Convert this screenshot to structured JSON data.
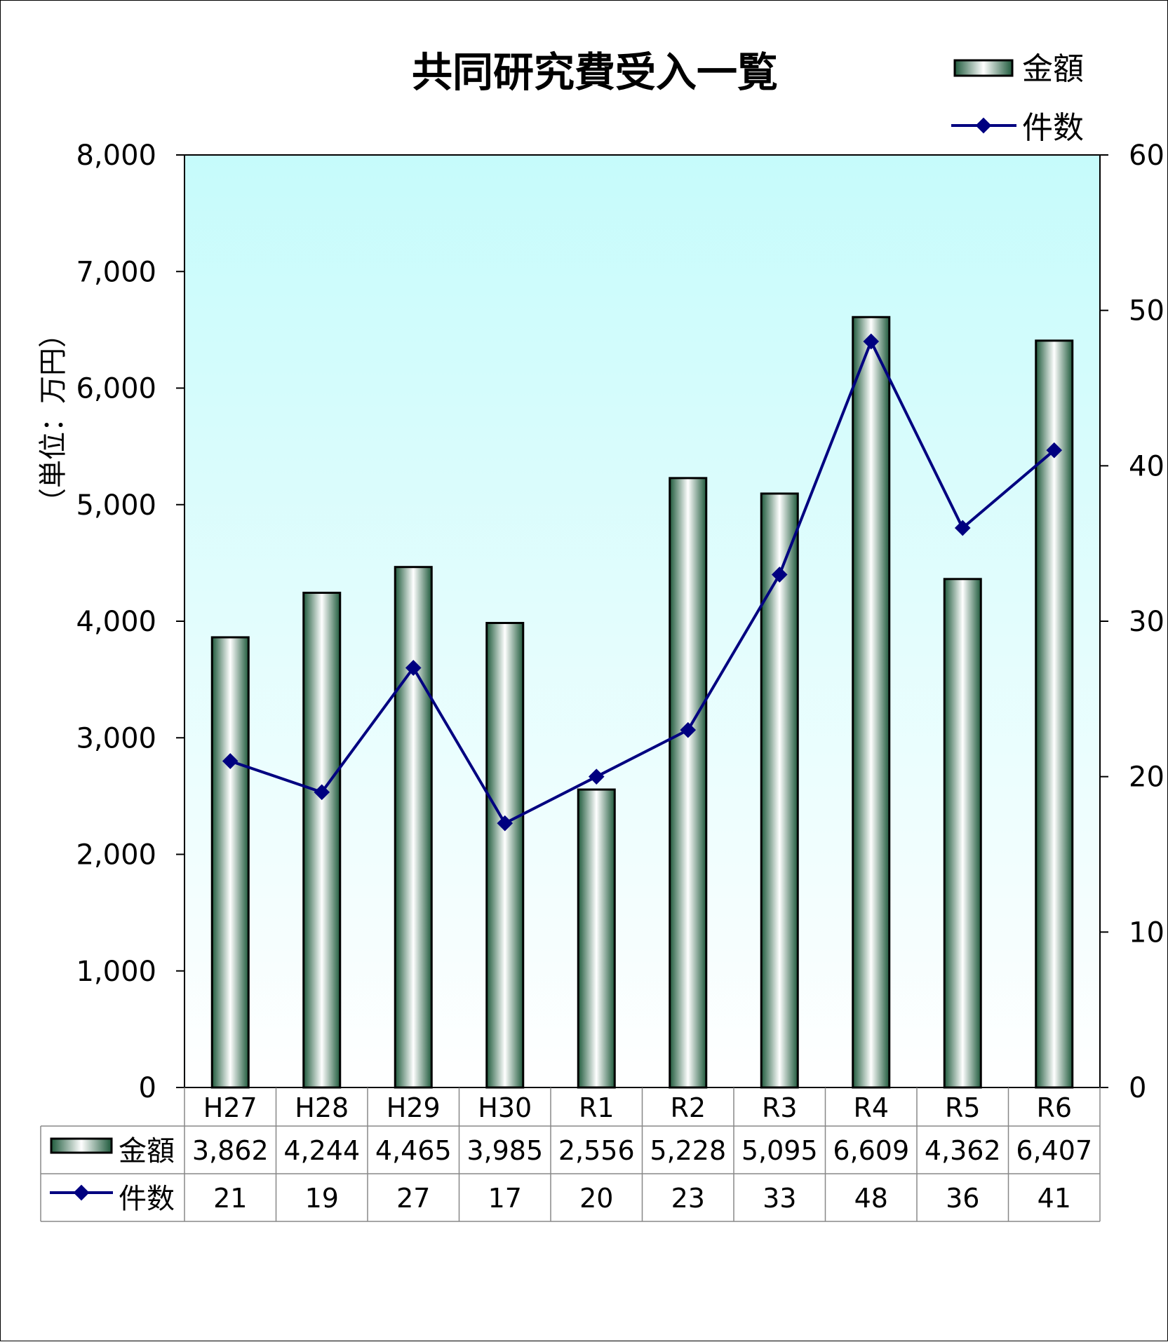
{
  "chart_data": {
    "type": "bar",
    "title": "共同研究費受入一覧",
    "ylabel": "（単位：万円）",
    "categories": [
      "H27",
      "H28",
      "H29",
      "H30",
      "R1",
      "R2",
      "R3",
      "R4",
      "R5",
      "R6"
    ],
    "y_left": {
      "range": [
        0,
        8000
      ],
      "ticks": [
        0,
        1000,
        2000,
        3000,
        4000,
        5000,
        6000,
        7000,
        8000
      ],
      "tick_labels": [
        "0",
        "1,000",
        "2,000",
        "3,000",
        "4,000",
        "5,000",
        "6,000",
        "7,000",
        "8,000"
      ]
    },
    "y_right": {
      "range": [
        0,
        60
      ],
      "ticks": [
        0,
        10,
        20,
        30,
        40,
        50,
        60
      ],
      "tick_labels": [
        "0",
        "10",
        "20",
        "30",
        "40",
        "50",
        "60"
      ]
    },
    "series": [
      {
        "name": "金額",
        "type": "bar",
        "axis": "left",
        "values": [
          3862,
          4244,
          4465,
          3985,
          2556,
          5228,
          5095,
          6609,
          4362,
          6407
        ],
        "value_labels": [
          "3,862",
          "4,244",
          "4,465",
          "3,985",
          "2,556",
          "5,228",
          "5,095",
          "6,609",
          "4,362",
          "6,407"
        ]
      },
      {
        "name": "件数",
        "type": "line",
        "axis": "right",
        "values": [
          21,
          19,
          27,
          17,
          20,
          23,
          33,
          48,
          36,
          41
        ],
        "value_labels": [
          "21",
          "19",
          "27",
          "17",
          "20",
          "23",
          "33",
          "48",
          "36",
          "41"
        ]
      }
    ],
    "legend": "top-right",
    "data_table": true,
    "grid": false,
    "colors": {
      "plot_top": "#c6fbfb",
      "plot_bottom": "#ffffff",
      "bar_dark": "#1f5a3c",
      "bar_light": "#ffffff",
      "line": "#000080",
      "marker": "#000080"
    }
  }
}
